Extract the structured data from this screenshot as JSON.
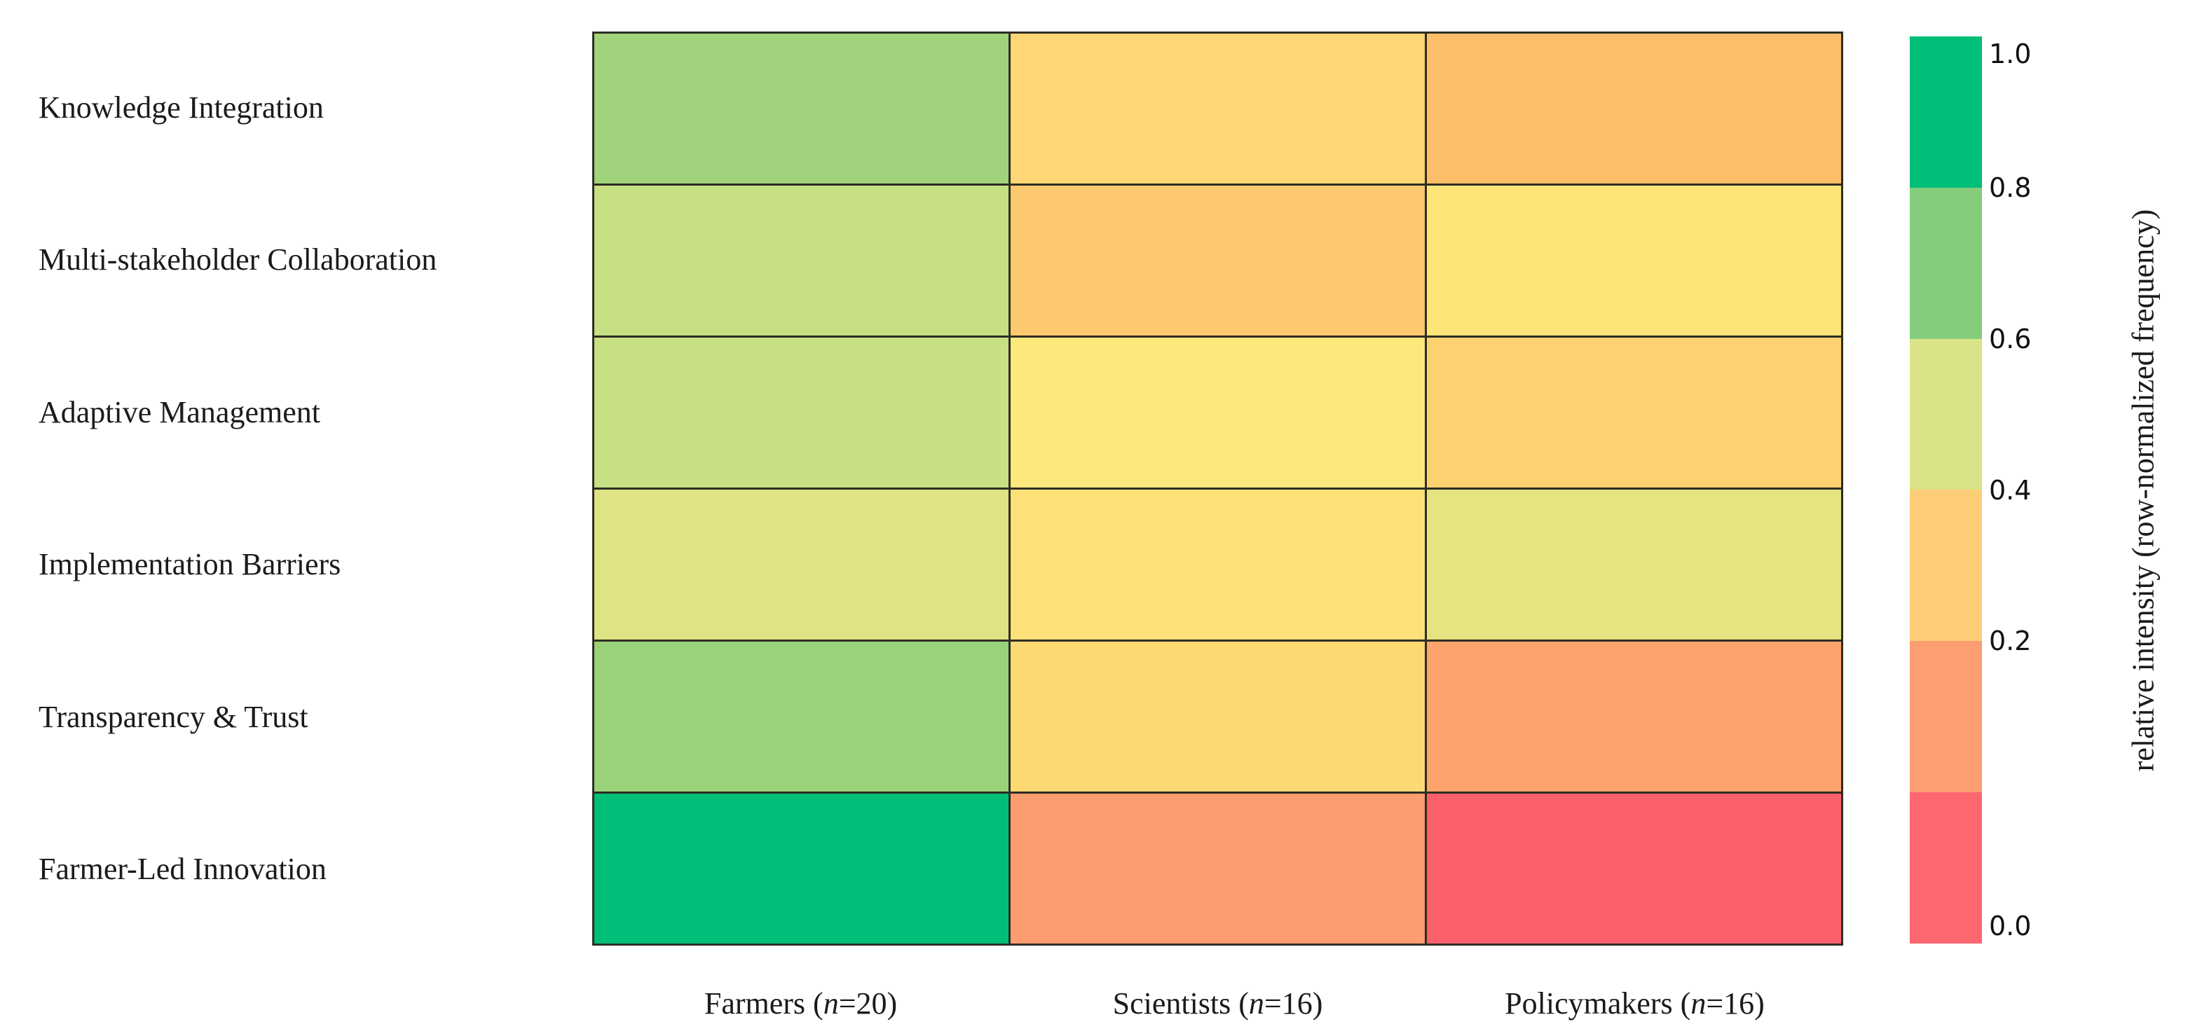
{
  "chart_data": {
    "type": "heatmap",
    "title": "",
    "rows": [
      "Knowledge Integration",
      "Multi-stakeholder Collaboration",
      "Adaptive Management",
      "Implementation Barriers",
      "Transparency & Trust",
      "Farmer-Led Innovation"
    ],
    "columns": [
      {
        "label": "Farmers (n=20)",
        "prefix": "Farmers (",
        "n": "n",
        "suffix": "=20)"
      },
      {
        "label": "Scientists (n=16)",
        "prefix": "Scientists (",
        "n": "n",
        "suffix": "=16)"
      },
      {
        "label": "Policymakers (n=16)",
        "prefix": "Policymakers (",
        "n": "n",
        "suffix": "=16)"
      }
    ],
    "values_estimated_from_colorbar": [
      [
        0.7,
        0.34,
        0.25
      ],
      [
        0.56,
        0.28,
        0.41
      ],
      [
        0.57,
        0.43,
        0.32
      ],
      [
        0.5,
        0.38,
        0.48
      ],
      [
        0.72,
        0.35,
        0.17
      ],
      [
        1.0,
        0.15,
        0.04
      ]
    ],
    "cell_colors": [
      [
        "#a0d37b",
        "#fdd676",
        "#fcbe69"
      ],
      [
        "#c6df82",
        "#fcc96e",
        "#fde677"
      ],
      [
        "#c6e083",
        "#fde87d",
        "#fdd371"
      ],
      [
        "#dfe383",
        "#fde078",
        "#e4e480"
      ],
      [
        "#9ad27a",
        "#fdd974",
        "#fca46b"
      ],
      [
        "#00bf78",
        "#fb9d6e",
        "#fb616b"
      ]
    ],
    "colorbar": {
      "label": "relative intensity (row-normalized frequency)",
      "ticks": [
        "1.0",
        "0.8",
        "0.6",
        "0.4",
        "0.2",
        "0.0"
      ],
      "segment_colors": [
        "#00bf78",
        "#85cd7c",
        "#dbe388",
        "#fdce77",
        "#fc9e71",
        "#fc6770"
      ],
      "range": [
        0.0,
        1.0
      ]
    },
    "layout": {
      "legend_position": "right",
      "grid": "on",
      "grid_line_color": "#2e2d24",
      "text_color": "#1b1b1b",
      "background": "#ffffff"
    }
  }
}
